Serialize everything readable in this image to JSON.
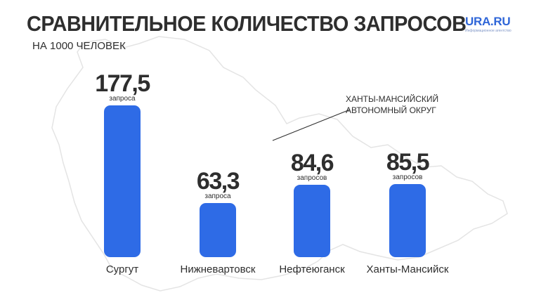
{
  "title": "СРАВНИТЕЛЬНОЕ КОЛИЧЕСТВО ЗАПРОСОВ",
  "subtitle": "НА 1000 ЧЕЛОВЕК",
  "logo": {
    "name": "URA.RU",
    "tagline": "Информационное агентство"
  },
  "region_label": {
    "line1": "ХАНТЫ-МАНСИЙСКИЙ",
    "line2": "АВТОНОМНЫЙ ОКРУГ"
  },
  "colors": {
    "bar": "#2e6be6",
    "text": "#2e2e2e",
    "map_outline": "#e4e4e4",
    "logo": "#2f66d8"
  },
  "chart_data": {
    "type": "bar",
    "title": "СРАВНИТЕЛЬНОЕ КОЛИЧЕСТВО ЗАПРОСОВ",
    "subtitle": "НА 1000 ЧЕЛОВЕК",
    "categories": [
      "Сургут",
      "Нижневартовск",
      "Нефтеюганск",
      "Ханты-Мансийск"
    ],
    "values": [
      177.5,
      63.3,
      84.6,
      85.5
    ],
    "value_labels": [
      "177,5",
      "63,3",
      "84,6",
      "85,5"
    ],
    "unit_labels": [
      "запроса",
      "запроса",
      "запросов",
      "запросов"
    ],
    "grid": false,
    "legend": "none"
  }
}
